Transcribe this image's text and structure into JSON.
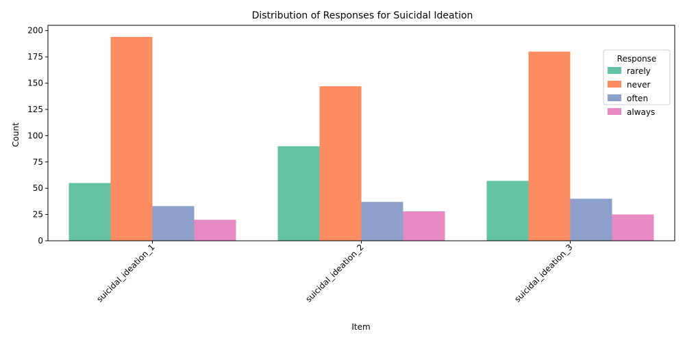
{
  "chart_data": {
    "type": "bar",
    "title": "Distribution of Responses for Suicidal Ideation",
    "xlabel": "Item",
    "ylabel": "Count",
    "categories": [
      "suicidal_ideation_1",
      "suicidal_ideation_2",
      "suicidal_ideation_3"
    ],
    "ylim": [
      0,
      205
    ],
    "yticks": [
      0,
      25,
      50,
      75,
      100,
      125,
      150,
      175,
      200
    ],
    "grid": false,
    "legend": {
      "title": "Response",
      "position": "top-right"
    },
    "series": [
      {
        "name": "rarely",
        "color": "#66c2a5",
        "values": [
          55,
          90,
          57
        ]
      },
      {
        "name": "never",
        "color": "#fc8d62",
        "values": [
          194,
          147,
          180
        ]
      },
      {
        "name": "often",
        "color": "#8da0cb",
        "values": [
          33,
          37,
          40
        ]
      },
      {
        "name": "always",
        "color": "#e78ac3",
        "values": [
          20,
          28,
          25
        ]
      }
    ]
  }
}
